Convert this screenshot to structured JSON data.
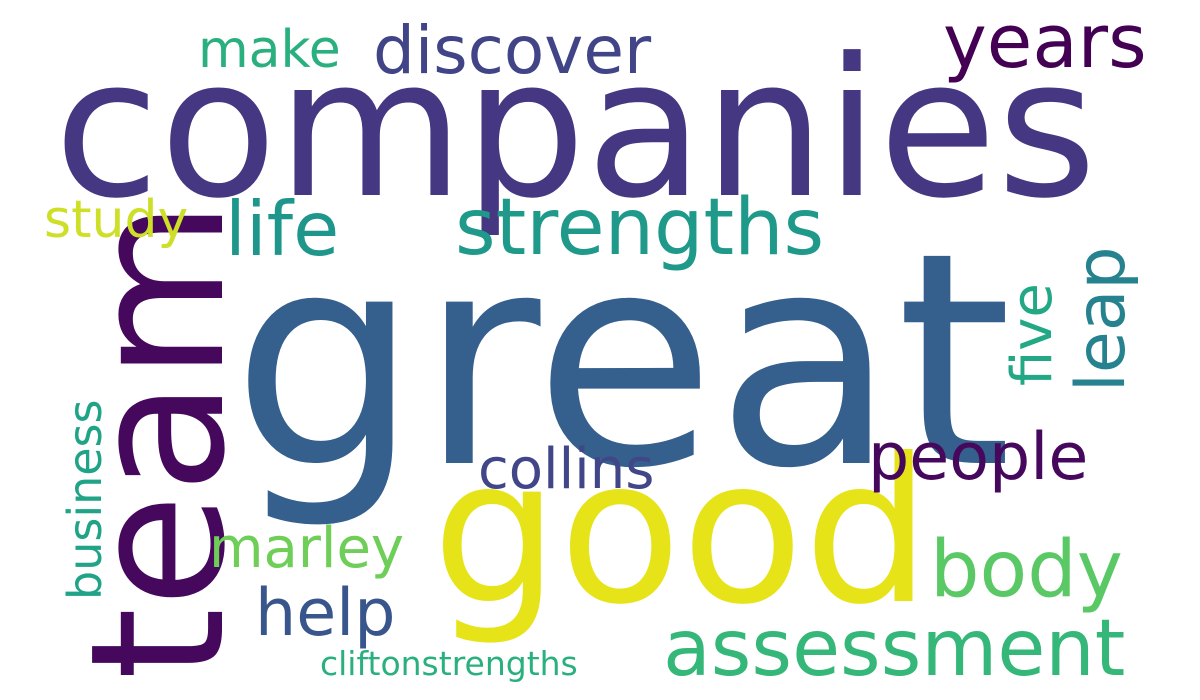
{
  "words": [
    {
      "id": "companies",
      "text": "companies",
      "color": "#453781"
    },
    {
      "id": "great",
      "text": "great",
      "color": "#355f8d"
    },
    {
      "id": "good",
      "text": "good",
      "color": "#e6e419"
    },
    {
      "id": "team",
      "text": "team",
      "color": "#46085c"
    },
    {
      "id": "strengths",
      "text": "strengths",
      "color": "#1f9a8a"
    },
    {
      "id": "life",
      "text": "life",
      "color": "#1f968b"
    },
    {
      "id": "study",
      "text": "study",
      "color": "#cddf27"
    },
    {
      "id": "make",
      "text": "make",
      "color": "#2aaf7f"
    },
    {
      "id": "discover",
      "text": "discover",
      "color": "#414487"
    },
    {
      "id": "years",
      "text": "years",
      "color": "#440154"
    },
    {
      "id": "collins",
      "text": "collins",
      "color": "#404688"
    },
    {
      "id": "people",
      "text": "people",
      "color": "#46085c"
    },
    {
      "id": "marley",
      "text": "marley",
      "color": "#6ece58"
    },
    {
      "id": "body",
      "text": "body",
      "color": "#5ac864"
    },
    {
      "id": "help",
      "text": "help",
      "color": "#39568c"
    },
    {
      "id": "assessment",
      "text": "assessment",
      "color": "#35b779"
    },
    {
      "id": "cliftonstrengths",
      "text": "cliftonstrengths",
      "color": "#2ab07f"
    },
    {
      "id": "business",
      "text": "business",
      "color": "#20a386"
    },
    {
      "id": "five",
      "text": "five",
      "color": "#22a884"
    },
    {
      "id": "leap",
      "text": "leap",
      "color": "#26828e"
    }
  ]
}
